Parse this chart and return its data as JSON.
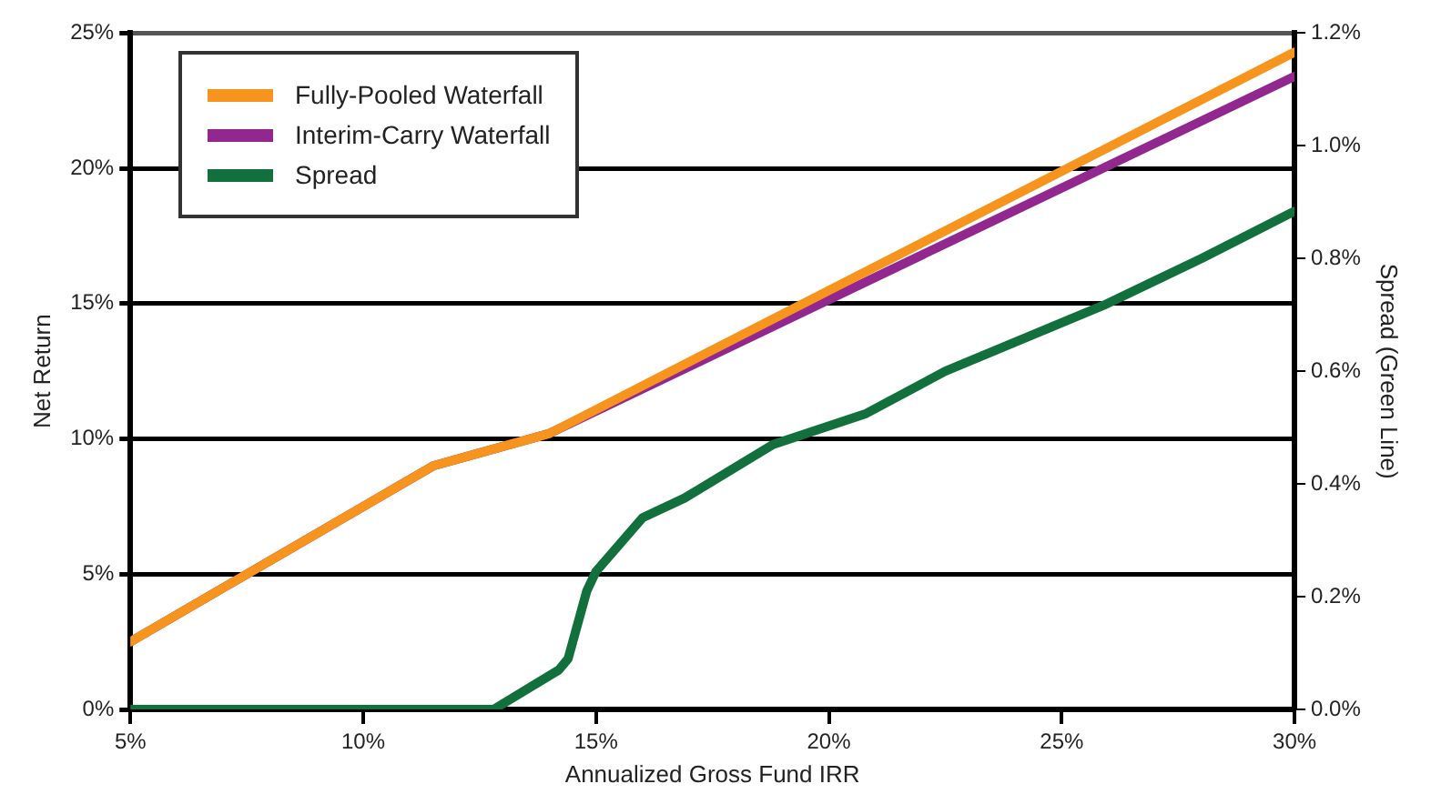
{
  "chart_data": {
    "type": "line",
    "xlabel": "Annualized Gross Fund IRR",
    "ylabel": "Net Return",
    "y2label": "Spread (Green Line)",
    "xlim": [
      5,
      30
    ],
    "xticks": [
      {
        "value": 5,
        "label": "5%"
      },
      {
        "value": 10,
        "label": "10%"
      },
      {
        "value": 15,
        "label": "15%"
      },
      {
        "value": 20,
        "label": "20%"
      },
      {
        "value": 25,
        "label": "25%"
      },
      {
        "value": 30,
        "label": "30%"
      }
    ],
    "ylim": [
      0,
      25
    ],
    "yticks": [
      {
        "value": 0,
        "label": "0%"
      },
      {
        "value": 5,
        "label": "5%"
      },
      {
        "value": 10,
        "label": "10%"
      },
      {
        "value": 15,
        "label": "15%"
      },
      {
        "value": 20,
        "label": "20%"
      },
      {
        "value": 25,
        "label": "25%"
      }
    ],
    "y2lim": [
      0,
      1.2
    ],
    "y2ticks": [
      {
        "value": 0,
        "label": "0.0%"
      },
      {
        "value": 0.2,
        "label": "0.2%"
      },
      {
        "value": 0.4,
        "label": "0.4%"
      },
      {
        "value": 0.6,
        "label": "0.6%"
      },
      {
        "value": 0.8,
        "label": "0.8%"
      },
      {
        "value": 1.0,
        "label": "1.0%"
      },
      {
        "value": 1.2,
        "label": "1.2%"
      }
    ],
    "grid": "y",
    "legend": "top left",
    "marker": "none",
    "line_style": "solid",
    "series": [
      {
        "name": "Fully-Pooled Waterfall",
        "color": "#f7941d",
        "x": [
          5,
          11.5,
          14,
          30
        ],
        "values": [
          2.5,
          9.0,
          10.2,
          24.3
        ]
      },
      {
        "name": "Interim-Carry Waterfall",
        "color": "#92278f",
        "x": [
          5,
          11.5,
          14,
          30
        ],
        "values": [
          2.5,
          9.0,
          10.2,
          23.4
        ]
      },
      {
        "name": "Spread",
        "color": "#12703c",
        "axis": "y2",
        "x": [
          5,
          12.3,
          12.8,
          14.2,
          14.4,
          14.8,
          15.0,
          16.0,
          16.9,
          18.8,
          20.8,
          22.5,
          25.9,
          28.0,
          30
        ],
        "values": [
          0,
          0,
          0.0,
          0.07,
          0.09,
          0.21,
          0.245,
          0.34,
          0.375,
          0.47,
          0.525,
          0.6,
          0.717,
          0.8,
          0.884
        ]
      }
    ]
  }
}
